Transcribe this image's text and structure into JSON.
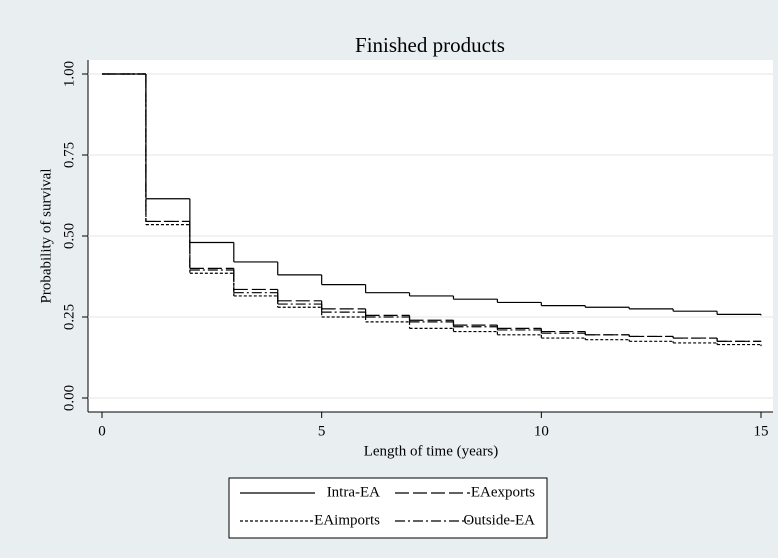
{
  "chart_data": {
    "type": "step",
    "title": "Finished products",
    "xlabel": "Length of time (years)",
    "ylabel": "Probability of survival",
    "x": [
      0,
      1,
      2,
      3,
      4,
      5,
      6,
      7,
      8,
      9,
      10,
      11,
      12,
      13,
      14,
      15
    ],
    "series": [
      {
        "name": "Intra-EA",
        "color": "#000000",
        "dash": "none",
        "values": [
          1,
          0.615,
          0.48,
          0.42,
          0.38,
          0.35,
          0.325,
          0.315,
          0.305,
          0.295,
          0.285,
          0.28,
          0.275,
          0.268,
          0.258,
          0.255
        ]
      },
      {
        "name": "EAexports",
        "color": "#000000",
        "dash": "14 4",
        "values": [
          1,
          0.545,
          0.4,
          0.335,
          0.3,
          0.275,
          0.255,
          0.24,
          0.225,
          0.215,
          0.205,
          0.195,
          0.19,
          0.185,
          0.175,
          0.175
        ]
      },
      {
        "name": "EAimports",
        "color": "#000000",
        "dash": "3 2",
        "values": [
          1,
          0.535,
          0.385,
          0.315,
          0.28,
          0.25,
          0.235,
          0.215,
          0.205,
          0.195,
          0.185,
          0.18,
          0.175,
          0.17,
          0.165,
          0.16
        ]
      },
      {
        "name": "Outside-EA",
        "color": "#000000",
        "dash": "10 3 2 3",
        "values": [
          1,
          0.545,
          0.395,
          0.325,
          0.29,
          0.265,
          0.25,
          0.235,
          0.22,
          0.21,
          0.2,
          0.195,
          0.19,
          0.185,
          0.175,
          0.175
        ]
      }
    ],
    "xlim": [
      0,
      15
    ],
    "xticks": [
      0,
      5,
      10,
      15
    ],
    "ylim": [
      0,
      1
    ],
    "yticks": [
      {
        "value": 0,
        "label": "0.00"
      },
      {
        "value": 0.25,
        "label": "0.25"
      },
      {
        "value": 0.5,
        "label": "0.50"
      },
      {
        "value": 0.75,
        "label": "0.75"
      },
      {
        "value": 1,
        "label": "1.00"
      }
    ],
    "grid": true,
    "legend": "bottom"
  }
}
